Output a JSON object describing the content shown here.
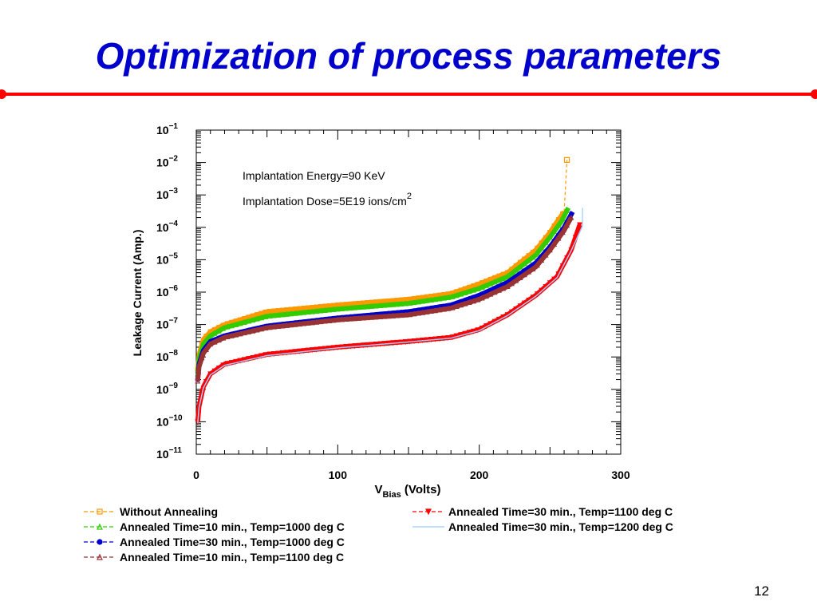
{
  "slide": {
    "title": "Optimization of process parameters",
    "page_number": "12",
    "rule_color": "#ff0000",
    "title_color": "#0000cc"
  },
  "chart_data": {
    "type": "line",
    "title": "",
    "xlabel_main": "V",
    "xlabel_sub": "Bias",
    "xlabel_unit": " (Volts)",
    "ylabel": "Leakage Current (Amp.)",
    "xlim": [
      0,
      300
    ],
    "ylim": [
      1e-11,
      0.1
    ],
    "yscale": "log",
    "x_ticks": [
      0,
      100,
      200,
      300
    ],
    "x_tick_labels": [
      "0",
      "100",
      "200",
      "300"
    ],
    "y_tick_exponents": [
      -11,
      -10,
      -9,
      -8,
      -7,
      -6,
      -5,
      -4,
      -3,
      -2,
      -1
    ],
    "y_tick_base": "10",
    "annotations": {
      "energy": "Implantation Energy=90 KeV",
      "dose": "Implantation Dose=5E19 ions/cm",
      "dose_sup": "2"
    },
    "legend_placement": "below",
    "series": [
      {
        "name": "Without Annealing",
        "color": "#ff9900",
        "marker": "square",
        "x": [
          1,
          2,
          5,
          10,
          20,
          50,
          100,
          150,
          180,
          200,
          220,
          240,
          250,
          255,
          260
        ],
        "y": [
          4e-09,
          1.2e-08,
          3.5e-08,
          6e-08,
          1e-07,
          2.5e-07,
          4e-07,
          6e-07,
          9e-07,
          1.8e-06,
          4e-06,
          2e-05,
          7e-05,
          0.00015,
          0.0003
        ],
        "end_spike": [
          262,
          0.012
        ]
      },
      {
        "name": "Annealed Time=10 min., Temp=1000 deg C",
        "color": "#33cc00",
        "marker": "triangle",
        "x": [
          1,
          2,
          5,
          10,
          20,
          50,
          100,
          150,
          180,
          200,
          220,
          240,
          250,
          258,
          263
        ],
        "y": [
          3e-09,
          9e-09,
          2.5e-08,
          4.5e-08,
          8e-08,
          1.8e-07,
          3e-07,
          4.5e-07,
          7e-07,
          1.3e-06,
          3e-06,
          1.4e-05,
          5e-05,
          0.00015,
          0.0004
        ]
      },
      {
        "name": "Annealed Time=30 min., Temp=1000 deg C",
        "color": "#0000cc",
        "marker": "circle",
        "x": [
          1,
          2,
          5,
          10,
          20,
          50,
          100,
          150,
          180,
          200,
          220,
          240,
          250,
          260,
          266
        ],
        "y": [
          2e-09,
          6e-09,
          1.6e-08,
          3e-08,
          4.5e-08,
          9e-08,
          1.6e-07,
          2.5e-07,
          4e-07,
          8e-07,
          2e-06,
          8e-06,
          2.5e-05,
          0.0001,
          0.0003
        ]
      },
      {
        "name": "Annealed Time=10 min., Temp=1100 deg C",
        "color": "#993333",
        "marker": "triangle",
        "x": [
          1,
          2,
          5,
          10,
          20,
          50,
          100,
          150,
          180,
          200,
          220,
          240,
          250,
          260,
          265
        ],
        "y": [
          1.8e-09,
          5e-09,
          1.3e-08,
          2.5e-08,
          4e-08,
          8e-08,
          1.4e-07,
          2e-07,
          3.2e-07,
          6e-07,
          1.5e-06,
          6e-06,
          2e-05,
          8e-05,
          0.0002
        ]
      },
      {
        "name": "Annealed Time=30 min., Temp=1100 deg C",
        "color": "#ff0000",
        "marker": "triangle-down",
        "x": [
          1,
          2,
          5,
          10,
          20,
          50,
          100,
          150,
          180,
          200,
          220,
          240,
          255,
          265,
          271
        ],
        "y": [
          1e-10,
          3e-10,
          1.2e-09,
          3e-09,
          6e-09,
          1.2e-08,
          2e-08,
          3e-08,
          4e-08,
          7e-08,
          2e-07,
          8e-07,
          3e-06,
          2e-05,
          0.00012
        ]
      },
      {
        "name": "Annealed Time=30 min., Temp=1200 deg C",
        "color": "#99ccff",
        "marker": "none",
        "x": [
          1,
          2,
          5,
          10,
          20,
          50,
          100,
          150,
          180,
          200,
          220,
          240,
          255,
          265,
          273
        ],
        "y": [
          9e-11,
          2.8e-10,
          1.1e-09,
          2.8e-09,
          5.5e-09,
          1.1e-08,
          1.9e-08,
          2.9e-08,
          3.8e-08,
          6.5e-08,
          1.9e-07,
          7.5e-07,
          2.8e-06,
          1.9e-05,
          0.00011
        ],
        "end_spike": [
          273,
          0.0004
        ]
      }
    ]
  }
}
